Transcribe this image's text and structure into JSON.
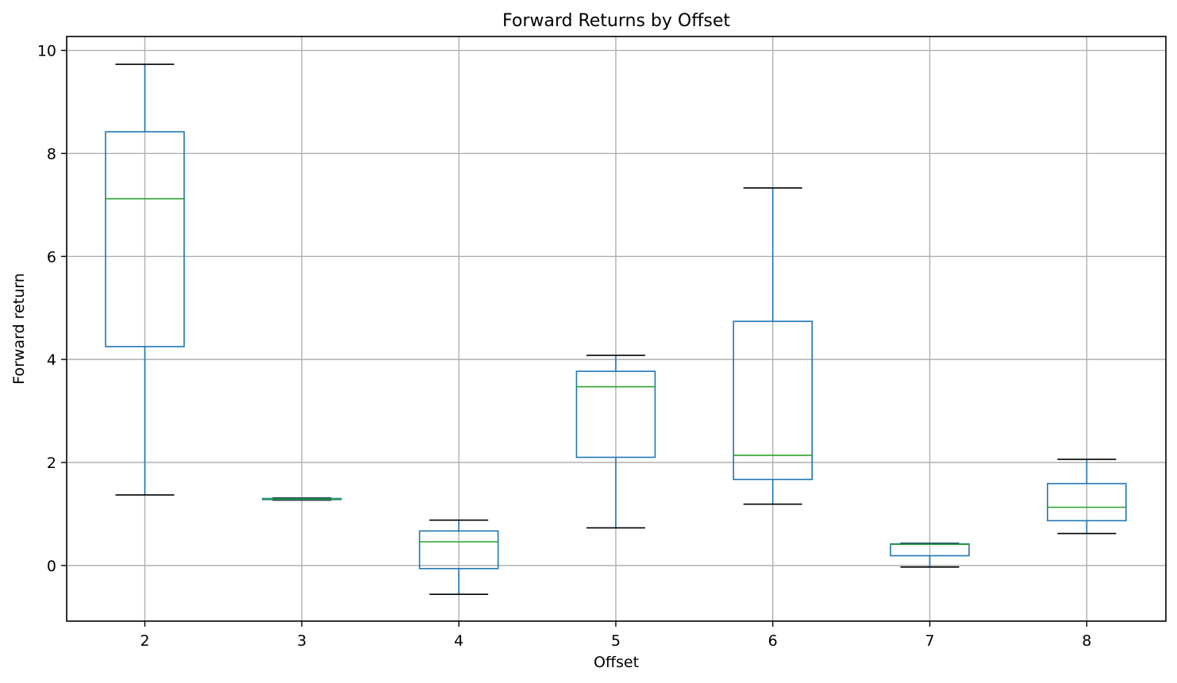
{
  "colors": {
    "box": "#1f77b4",
    "median": "#2ca02c",
    "cap": "#000000",
    "grid": "#b0b0b0",
    "frame": "#000000"
  },
  "chart_data": {
    "type": "box",
    "title": "Forward Returns by Offset",
    "xlabel": "Offset",
    "ylabel": "Forward return",
    "ylim": [
      -1.08,
      10.27
    ],
    "yticks": [
      0,
      2,
      4,
      6,
      8,
      10
    ],
    "grid": true,
    "categories": [
      "2",
      "3",
      "4",
      "5",
      "6",
      "7",
      "8"
    ],
    "boxes": [
      {
        "category": "2",
        "whislo": 1.37,
        "q1": 4.25,
        "med": 7.12,
        "q3": 8.42,
        "whishi": 9.73
      },
      {
        "category": "3",
        "whislo": 1.27,
        "q1": 1.28,
        "med": 1.29,
        "q3": 1.3,
        "whishi": 1.31
      },
      {
        "category": "4",
        "whislo": -0.56,
        "q1": -0.06,
        "med": 0.46,
        "q3": 0.67,
        "whishi": 0.88
      },
      {
        "category": "5",
        "whislo": 0.73,
        "q1": 2.1,
        "med": 3.47,
        "q3": 3.77,
        "whishi": 4.08
      },
      {
        "category": "6",
        "whislo": 1.19,
        "q1": 1.67,
        "med": 2.14,
        "q3": 4.74,
        "whishi": 7.33
      },
      {
        "category": "7",
        "whislo": -0.03,
        "q1": 0.19,
        "med": 0.41,
        "q3": 0.42,
        "whishi": 0.43
      },
      {
        "category": "8",
        "whislo": 0.62,
        "q1": 0.87,
        "med": 1.13,
        "q3": 1.59,
        "whishi": 2.06
      }
    ]
  }
}
